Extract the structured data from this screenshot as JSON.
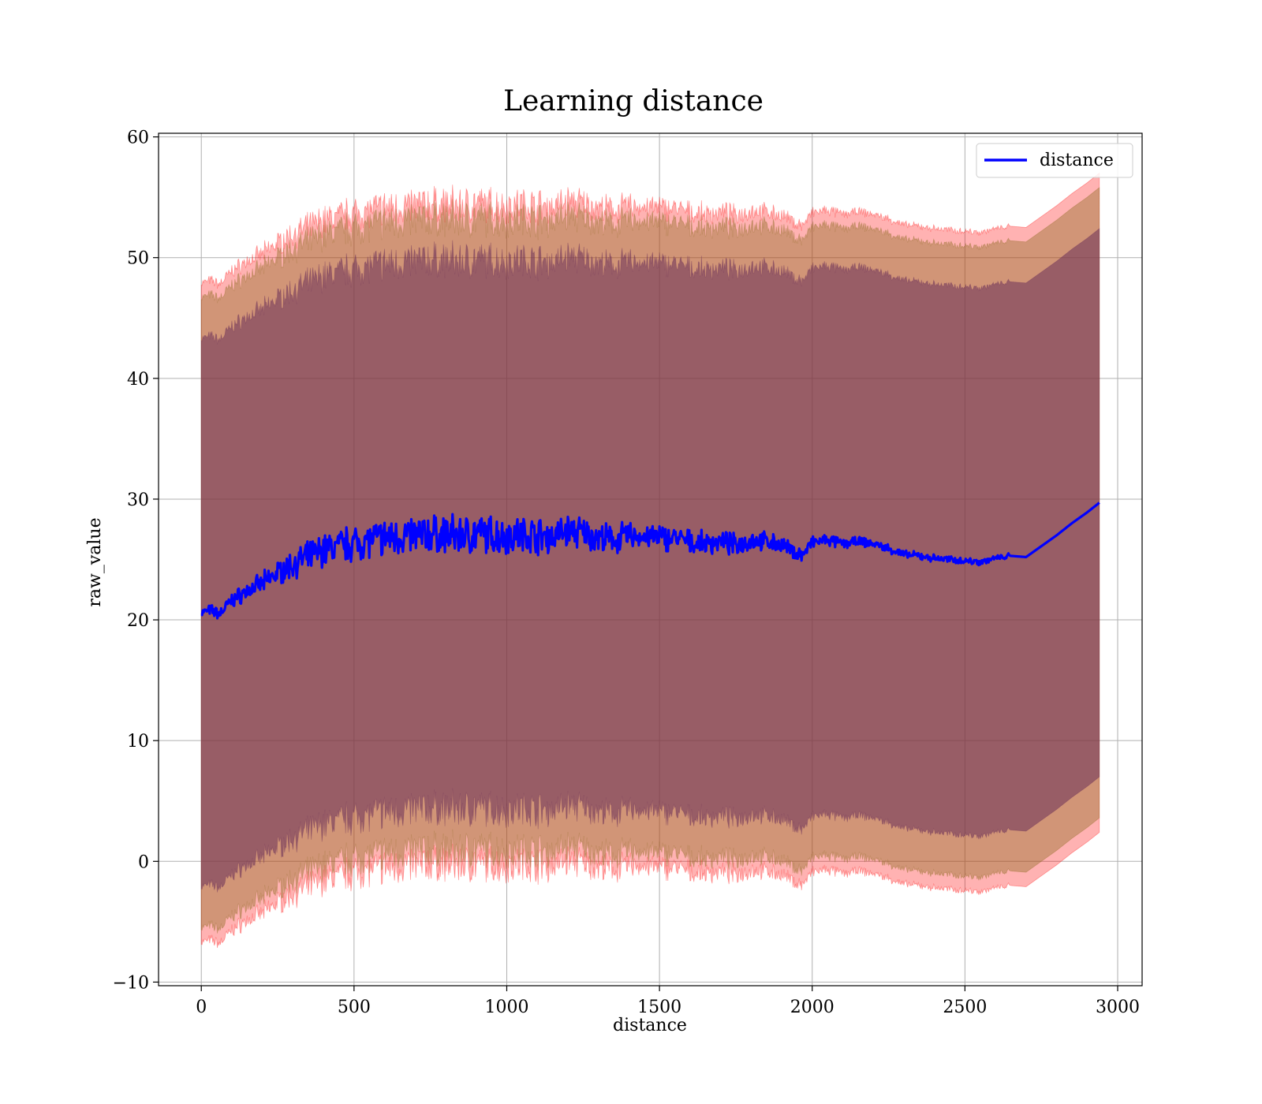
{
  "chart_data": {
    "type": "line",
    "title": "Learning distance",
    "xlabel": "distance",
    "ylabel": "raw_value",
    "xlim": [
      -140,
      3080
    ],
    "ylim": [
      -10.3,
      60.3
    ],
    "xticks": [
      0,
      500,
      1000,
      1500,
      2000,
      2500,
      3000
    ],
    "yticks": [
      -10,
      0,
      10,
      20,
      30,
      40,
      50,
      60
    ],
    "grid": true,
    "legend": {
      "placement": "top-right",
      "entries": [
        "distance"
      ]
    },
    "colors": {
      "line": "#0000ff",
      "band_outer": "#ff0000",
      "band_middle": "#8c6a1f",
      "band_inner": "#6a2f5a"
    },
    "band_opacity": [
      0.3,
      0.4,
      0.55
    ],
    "band_half_widths": [
      27.3,
      26.1,
      22.7
    ],
    "noise_amplitude": [
      0.3,
      1.1,
      1.3,
      1.0,
      0.7,
      0.3,
      0.2,
      0.1
    ],
    "series": [
      {
        "name": "distance",
        "x": [
          0,
          30,
          60,
          100,
          150,
          200,
          250,
          300,
          350,
          400,
          450,
          500,
          550,
          600,
          650,
          700,
          750,
          800,
          850,
          900,
          950,
          1000,
          1050,
          1100,
          1150,
          1200,
          1250,
          1300,
          1350,
          1400,
          1450,
          1500,
          1550,
          1600,
          1650,
          1700,
          1750,
          1800,
          1850,
          1900,
          1950,
          1970,
          2000,
          2050,
          2100,
          2150,
          2200,
          2250,
          2300,
          2350,
          2400,
          2450,
          2500,
          2550,
          2600,
          2650,
          2700,
          2750,
          2800,
          2850,
          2900,
          2940
        ],
        "y": [
          20.6,
          20.8,
          20.5,
          21.6,
          22.4,
          23.0,
          23.9,
          24.6,
          25.2,
          25.8,
          26.1,
          26.4,
          26.6,
          26.8,
          26.9,
          27.0,
          27.1,
          27.0,
          27.0,
          27.1,
          27.0,
          27.0,
          27.1,
          27.0,
          26.9,
          27.4,
          27.2,
          26.8,
          26.6,
          27.0,
          26.9,
          26.8,
          26.8,
          26.4,
          26.3,
          26.5,
          26.2,
          26.6,
          26.5,
          26.2,
          25.5,
          25.4,
          26.4,
          26.6,
          26.3,
          26.5,
          26.3,
          25.9,
          25.4,
          25.3,
          25.1,
          25.0,
          24.9,
          24.8,
          25.1,
          25.3,
          25.2,
          26.1,
          27.0,
          28.0,
          28.9,
          29.7
        ]
      }
    ]
  }
}
